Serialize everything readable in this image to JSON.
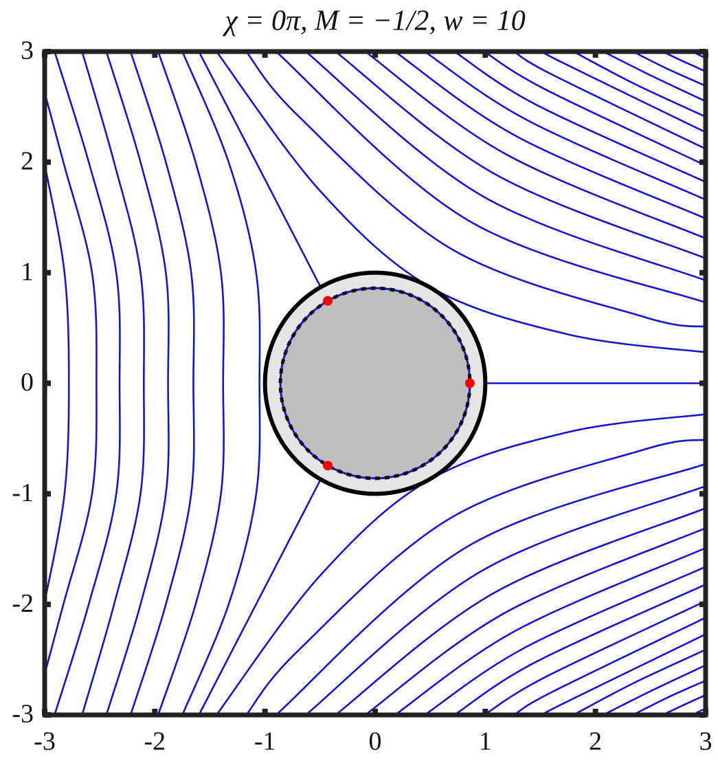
{
  "chart_data": {
    "type": "streamline",
    "title": "χ = 0π, M = −1/2, w = 10",
    "xlim": [
      -3,
      3
    ],
    "ylim": [
      -3,
      3
    ],
    "xticks": [
      -3,
      -2,
      -1,
      0,
      1,
      2,
      3
    ],
    "yticks": [
      -3,
      -2,
      -1,
      0,
      1,
      2,
      3
    ],
    "line_color": "#1414d2",
    "point_color": "#ff0000",
    "cylinder_radius": 1,
    "inner_radius": 0.86,
    "streamlines": [
      {
        "x": [
          -1.44,
          -0.5,
          0.5,
          1.76,
          3
        ],
        "y": [
          3,
          1.74,
          0.87,
          0.44,
          0.28
        ]
      },
      {
        "x": [
          -1.17,
          -0.7,
          0.7,
          2.44,
          3
        ],
        "y": [
          3,
          2.42,
          1.21,
          0.6,
          0.51
        ]
      },
      {
        "x": [
          -0.9,
          0.85,
          3
        ],
        "y": [
          3,
          1.47,
          0.73
        ]
      },
      {
        "x": [
          -0.63,
          0.98,
          3
        ],
        "y": [
          3,
          1.69,
          0.93
        ]
      },
      {
        "x": [
          -0.36,
          1.09,
          3
        ],
        "y": [
          3,
          1.89,
          1.13
        ]
      },
      {
        "x": [
          -0.09,
          1.19,
          3
        ],
        "y": [
          3,
          2.07,
          1.31
        ]
      },
      {
        "x": [
          0.18,
          1.29,
          3
        ],
        "y": [
          3,
          2.23,
          1.49
        ]
      },
      {
        "x": [
          0.45,
          1.38,
          3
        ],
        "y": [
          3,
          2.38,
          1.66
        ]
      },
      {
        "x": [
          0.72,
          1.46,
          3
        ],
        "y": [
          3,
          2.52,
          1.82
        ]
      },
      {
        "x": [
          0.99,
          1.54,
          3
        ],
        "y": [
          3,
          2.66,
          1.97
        ]
      },
      {
        "x": [
          1.26,
          1.61,
          3
        ],
        "y": [
          3,
          2.79,
          2.12
        ]
      },
      {
        "x": [
          1.53,
          1.68,
          3
        ],
        "y": [
          3,
          2.91,
          2.27
        ]
      },
      {
        "x": [
          1.8,
          2.35,
          3
        ],
        "y": [
          3,
          2.71,
          2.41
        ]
      },
      {
        "x": [
          2.07,
          2.51,
          3
        ],
        "y": [
          3,
          2.78,
          2.55
        ]
      },
      {
        "x": [
          2.34,
          2.66,
          3
        ],
        "y": [
          3,
          2.84,
          2.69
        ]
      },
      {
        "x": [
          2.61,
          2.8,
          3
        ],
        "y": [
          3,
          2.91,
          2.82
        ]
      },
      {
        "x": [
          2.88,
          2.94,
          3
        ],
        "y": [
          3,
          2.97,
          2.94
        ]
      },
      {
        "x": [
          -1.44,
          -0.5,
          0.5,
          1.76,
          3
        ],
        "y": [
          -3,
          -1.74,
          -0.87,
          -0.44,
          -0.28
        ]
      },
      {
        "x": [
          -1.17,
          -0.7,
          0.7,
          2.44,
          3
        ],
        "y": [
          -3,
          -2.42,
          -1.21,
          -0.6,
          -0.51
        ]
      },
      {
        "x": [
          -0.9,
          0.85,
          3
        ],
        "y": [
          -3,
          -1.47,
          -0.73
        ]
      },
      {
        "x": [
          -0.63,
          0.98,
          3
        ],
        "y": [
          -3,
          -1.69,
          -0.93
        ]
      },
      {
        "x": [
          -0.36,
          1.09,
          3
        ],
        "y": [
          -3,
          -1.89,
          -1.13
        ]
      },
      {
        "x": [
          -0.09,
          1.19,
          3
        ],
        "y": [
          -3,
          -2.07,
          -1.31
        ]
      },
      {
        "x": [
          0.18,
          1.29,
          3
        ],
        "y": [
          -3,
          -2.23,
          -1.49
        ]
      },
      {
        "x": [
          0.45,
          1.38,
          3
        ],
        "y": [
          -3,
          -2.38,
          -1.66
        ]
      },
      {
        "x": [
          0.72,
          1.46,
          3
        ],
        "y": [
          -3,
          -2.52,
          -1.82
        ]
      },
      {
        "x": [
          0.99,
          1.54,
          3
        ],
        "y": [
          -3,
          -2.66,
          -1.97
        ]
      },
      {
        "x": [
          1.26,
          1.61,
          3
        ],
        "y": [
          -3,
          -2.79,
          -2.12
        ]
      },
      {
        "x": [
          1.53,
          1.68,
          3
        ],
        "y": [
          -3,
          -2.91,
          -2.27
        ]
      },
      {
        "x": [
          1.8,
          2.35,
          3
        ],
        "y": [
          -3,
          -2.71,
          -2.41
        ]
      },
      {
        "x": [
          2.07,
          2.51,
          3
        ],
        "y": [
          -3,
          -2.78,
          -2.55
        ]
      },
      {
        "x": [
          2.34,
          2.66,
          3
        ],
        "y": [
          -3,
          -2.84,
          -2.69
        ]
      },
      {
        "x": [
          2.61,
          2.8,
          3
        ],
        "y": [
          -3,
          -2.91,
          -2.82
        ]
      },
      {
        "x": [
          2.88,
          2.94,
          3
        ],
        "y": [
          -3,
          -2.97,
          -2.94
        ]
      },
      {
        "x": [
          -1.75,
          -1.33,
          -1.08,
          -1.05,
          -1.08,
          -1.33,
          -1.75
        ],
        "y": [
          3,
          2,
          1,
          0,
          -1,
          -2,
          -3
        ]
      },
      {
        "x": [
          -1.97,
          -1.63,
          -1.4,
          -1.38,
          -1.4,
          -1.63,
          -1.97
        ],
        "y": [
          3,
          2,
          1,
          0,
          -1,
          -2,
          -3
        ]
      },
      {
        "x": [
          -2.22,
          -1.9,
          -1.67,
          -1.65,
          -1.67,
          -1.9,
          -2.22
        ],
        "y": [
          3,
          2,
          1,
          0,
          -1,
          -2,
          -3
        ]
      },
      {
        "x": [
          -2.44,
          -2.13,
          -1.9,
          -1.88,
          -1.9,
          -2.13,
          -2.44
        ],
        "y": [
          3,
          2,
          1,
          0,
          -1,
          -2,
          -3
        ]
      },
      {
        "x": [
          -2.66,
          -2.37,
          -2.13,
          -2.1,
          -2.13,
          -2.37,
          -2.66
        ],
        "y": [
          3,
          2,
          1,
          0,
          -1,
          -2,
          -3
        ]
      },
      {
        "x": [
          -2.91,
          -2.6,
          -2.35,
          -2.32,
          -2.35,
          -2.6,
          -2.91
        ],
        "y": [
          3,
          2,
          1,
          0,
          -1,
          -2,
          -3
        ]
      },
      {
        "x": [
          -3,
          -2.83,
          -2.57,
          -2.53,
          -2.57,
          -2.83,
          -3
        ],
        "y": [
          2.63,
          2,
          1,
          0,
          -1,
          -2,
          -2.63
        ]
      },
      {
        "x": [
          -3,
          -2.82,
          -2.78,
          -2.82,
          -3
        ],
        "y": [
          1.98,
          1,
          0,
          -1,
          -1.98
        ]
      },
      {
        "x": [
          -3,
          -2.985,
          -3
        ],
        "y": [
          0.75,
          0,
          -0.75
        ]
      }
    ],
    "separatrices": [
      {
        "x": [
          -0.43,
          -1.6
        ],
        "y": [
          0.745,
          3
        ]
      },
      {
        "x": [
          -0.43,
          -1.6
        ],
        "y": [
          -0.745,
          -3
        ]
      },
      {
        "x": [
          0.86,
          3
        ],
        "y": [
          0,
          0
        ]
      }
    ],
    "stagnation_points": {
      "x": [
        0.86,
        -0.43,
        -0.43
      ],
      "y": [
        0,
        0.745,
        -0.745
      ]
    }
  }
}
